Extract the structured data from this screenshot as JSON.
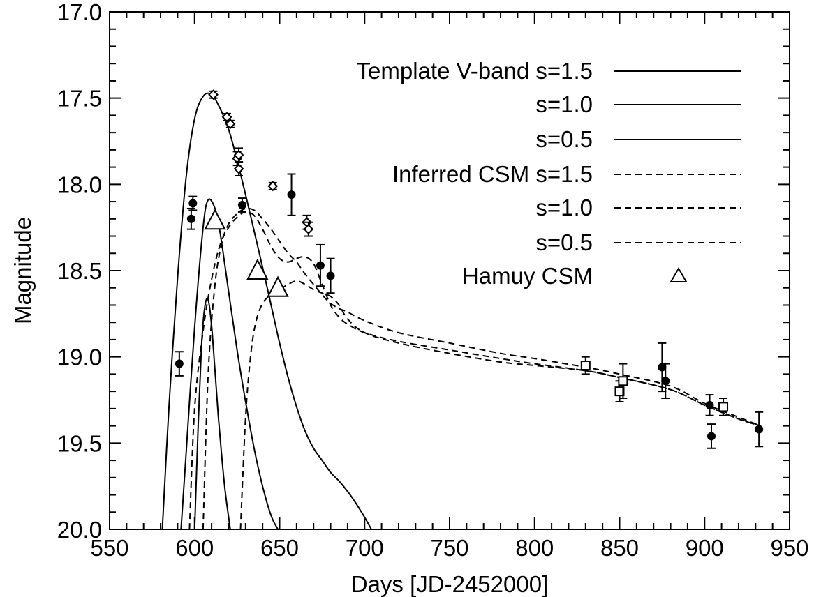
{
  "chart_data": {
    "type": "scatter",
    "title": "",
    "xlabel": "Days [JD-2452000]",
    "ylabel": "Magnitude",
    "xlim": [
      550,
      950
    ],
    "ylim": [
      20.0,
      17.0
    ],
    "y_inverted": true,
    "xticks": [
      "550",
      "600",
      "650",
      "700",
      "750",
      "800",
      "850",
      "900",
      "950"
    ],
    "yticks": [
      "17.0",
      "17.5",
      "18.0",
      "18.5",
      "19.0",
      "19.5",
      "20.0"
    ],
    "grid": false,
    "legend_position": "top-right",
    "legend": [
      {
        "label": "Template V-band  s=1.5",
        "style": "solid"
      },
      {
        "label": "s=1.0",
        "style": "solid"
      },
      {
        "label": "s=0.5",
        "style": "solid"
      },
      {
        "label": "Inferred CSM  s=1.5",
        "style": "dashed"
      },
      {
        "label": "s=1.0",
        "style": "dashed"
      },
      {
        "label": "s=0.5",
        "style": "dashed"
      },
      {
        "label": "Hamuy CSM",
        "style": "triangle"
      }
    ],
    "series": [
      {
        "name": "Template V-band s=1.5",
        "style": "solid",
        "x": [
          581,
          585,
          590,
          595,
          600,
          605,
          610,
          615,
          620,
          625,
          630,
          635,
          640,
          645,
          650,
          655,
          660,
          665,
          670,
          675,
          680,
          685,
          690,
          695,
          700,
          704
        ],
        "y": [
          20.0,
          19.28,
          18.54,
          17.96,
          17.62,
          17.49,
          17.48,
          17.56,
          17.68,
          17.86,
          18.06,
          18.27,
          18.48,
          18.7,
          18.92,
          19.12,
          19.29,
          19.43,
          19.53,
          19.6,
          19.67,
          19.72,
          19.78,
          19.85,
          19.93,
          20.0
        ]
      },
      {
        "name": "Template V-band s=1.0",
        "style": "solid",
        "x": [
          592,
          595,
          600,
          605,
          608,
          612,
          615,
          620,
          625,
          630,
          635,
          640,
          645,
          649
        ],
        "y": [
          20.0,
          19.56,
          18.83,
          18.25,
          18.09,
          18.14,
          18.28,
          18.62,
          18.96,
          19.26,
          19.53,
          19.75,
          19.92,
          20.0
        ]
      },
      {
        "name": "Template V-band s=0.5",
        "style": "solid",
        "x": [
          600,
          602,
          604,
          606,
          608,
          610,
          612,
          614,
          616,
          618,
          621
        ],
        "y": [
          20.0,
          19.43,
          18.95,
          18.71,
          18.67,
          18.82,
          19.08,
          19.35,
          19.58,
          19.78,
          20.0
        ]
      },
      {
        "name": "Inferred CSM s=1.5",
        "style": "dashed",
        "x": [
          605,
          608,
          612,
          616,
          620,
          625,
          630,
          635,
          640,
          645,
          650,
          655,
          660,
          665,
          670,
          675,
          680,
          685,
          690,
          700,
          720,
          750,
          780,
          800,
          830,
          850,
          880,
          900,
          920,
          933
        ],
        "y": [
          20.0,
          19.1,
          18.58,
          18.34,
          18.23,
          18.17,
          18.14,
          18.15,
          18.2,
          18.26,
          18.33,
          18.4,
          18.45,
          18.52,
          18.58,
          18.64,
          18.69,
          18.72,
          18.74,
          18.79,
          18.86,
          18.92,
          18.98,
          19.01,
          19.06,
          19.1,
          19.17,
          19.27,
          19.35,
          19.4
        ]
      },
      {
        "name": "Inferred CSM s=1.0",
        "style": "dashed",
        "x": [
          597,
          600,
          605,
          610,
          615,
          620,
          625,
          630,
          635,
          640,
          645,
          650,
          655,
          660,
          665,
          670,
          675,
          680,
          685,
          690,
          700,
          720,
          750,
          780,
          800,
          830,
          850,
          880,
          900,
          920,
          933
        ],
        "y": [
          20.0,
          19.3,
          18.85,
          18.55,
          18.35,
          18.25,
          18.19,
          18.16,
          18.18,
          18.26,
          18.36,
          18.43,
          18.45,
          18.43,
          18.42,
          18.46,
          18.58,
          18.7,
          18.77,
          18.81,
          18.86,
          18.91,
          18.96,
          19.01,
          19.04,
          19.08,
          19.12,
          19.19,
          19.28,
          19.36,
          19.4
        ]
      },
      {
        "name": "Inferred CSM s=0.5",
        "style": "dashed",
        "x": [
          627,
          630,
          633,
          636,
          640,
          645,
          650,
          655,
          660,
          665,
          670,
          675,
          680,
          685,
          690,
          700,
          720,
          750,
          780,
          800,
          830,
          850,
          880,
          900,
          920,
          933
        ],
        "y": [
          20.0,
          19.35,
          18.99,
          18.8,
          18.69,
          18.64,
          18.61,
          18.58,
          18.56,
          18.58,
          18.61,
          18.63,
          18.65,
          18.7,
          18.78,
          18.86,
          18.92,
          18.98,
          19.03,
          19.05,
          19.08,
          19.12,
          19.19,
          19.28,
          19.36,
          19.4
        ]
      },
      {
        "name": "Hamuy CSM",
        "style": "triangle",
        "x": [
          612,
          637,
          649
        ],
        "y": [
          18.21,
          18.5,
          18.6
        ]
      },
      {
        "name": "Filled circles",
        "style": "filled-circle",
        "x": [
          591,
          598,
          599,
          628,
          657,
          674,
          680,
          875,
          877,
          903,
          904,
          932
        ],
        "y": [
          19.04,
          18.2,
          18.11,
          18.12,
          18.06,
          18.47,
          18.53,
          19.06,
          19.14,
          19.28,
          19.46,
          19.42
        ],
        "err": [
          0.07,
          0.06,
          0.04,
          0.04,
          0.12,
          0.12,
          0.1,
          0.14,
          0.1,
          0.06,
          0.07,
          0.1
        ]
      },
      {
        "name": "Open diamonds",
        "style": "open-diamond",
        "x": [
          611,
          619,
          621,
          625,
          626,
          626,
          646,
          666,
          667
        ],
        "y": [
          17.48,
          17.61,
          17.65,
          17.85,
          17.91,
          17.83,
          18.01,
          18.22,
          18.26
        ],
        "err": [
          0.02,
          0.02,
          0.02,
          0.04,
          0.04,
          0.04,
          0.02,
          0.04,
          0.04
        ]
      },
      {
        "name": "Open squares",
        "style": "open-square",
        "x": [
          830,
          850,
          852,
          911
        ],
        "y": [
          19.05,
          19.2,
          19.14,
          19.29
        ],
        "err": [
          0.05,
          0.06,
          0.1,
          0.05
        ]
      }
    ]
  }
}
